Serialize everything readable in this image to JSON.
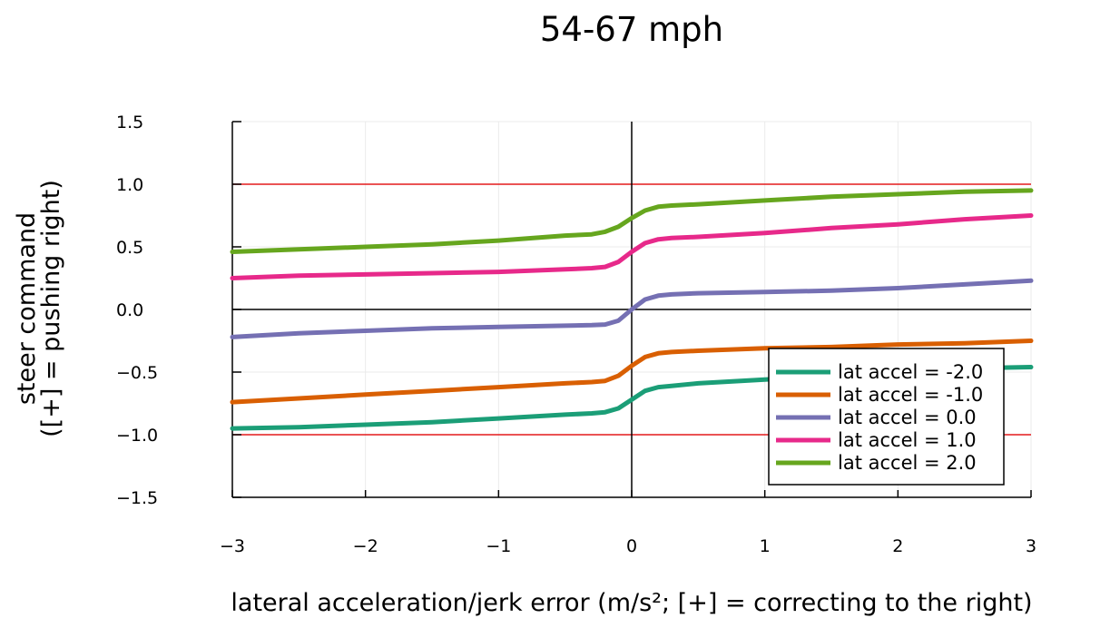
{
  "chart_data": {
    "type": "line",
    "title": "54-67 mph",
    "xlabel": "lateral acceleration/jerk error (m/s²; [+] = correcting to the right)",
    "ylabel": [
      "steer command",
      "([+] = pushing right)"
    ],
    "xlim": [
      -3,
      3
    ],
    "ylim": [
      -1.5,
      1.5
    ],
    "xticks": [
      -3,
      -2,
      -1,
      0,
      1,
      2,
      3
    ],
    "xtick_labels": [
      "−3",
      "−2",
      "−1",
      "0",
      "1",
      "2",
      "3"
    ],
    "yticks": [
      -1.5,
      -1.0,
      -0.5,
      0.0,
      0.5,
      1.0,
      1.5
    ],
    "ytick_labels": [
      "−1.5",
      "−1.0",
      "−0.5",
      "0.0",
      "0.5",
      "1.0",
      "1.5"
    ],
    "grid": true,
    "legend_position": "bottom-right",
    "reference_lines": [
      {
        "axis": "y",
        "value": 1.0,
        "color": "#e41a1c"
      },
      {
        "axis": "y",
        "value": -1.0,
        "color": "#e41a1c"
      },
      {
        "axis": "y",
        "value": 0.0,
        "color": "#000000"
      },
      {
        "axis": "x",
        "value": 0.0,
        "color": "#000000"
      }
    ],
    "x": [
      -3,
      -2.5,
      -2,
      -1.5,
      -1,
      -0.5,
      -0.3,
      -0.2,
      -0.1,
      0,
      0.1,
      0.2,
      0.3,
      0.5,
      1,
      1.5,
      2,
      2.5,
      3
    ],
    "series": [
      {
        "name": "lat accel = -2.0",
        "color": "#1b9e77",
        "values": [
          -0.95,
          -0.94,
          -0.92,
          -0.9,
          -0.87,
          -0.84,
          -0.83,
          -0.82,
          -0.79,
          -0.72,
          -0.65,
          -0.62,
          -0.61,
          -0.59,
          -0.56,
          -0.53,
          -0.5,
          -0.47,
          -0.46
        ]
      },
      {
        "name": "lat accel = -1.0",
        "color": "#d95f02",
        "values": [
          -0.74,
          -0.71,
          -0.68,
          -0.65,
          -0.62,
          -0.59,
          -0.58,
          -0.57,
          -0.53,
          -0.45,
          -0.38,
          -0.35,
          -0.34,
          -0.33,
          -0.31,
          -0.3,
          -0.28,
          -0.27,
          -0.25
        ]
      },
      {
        "name": "lat accel = 0.0",
        "color": "#7570b3",
        "values": [
          -0.22,
          -0.19,
          -0.17,
          -0.15,
          -0.14,
          -0.13,
          -0.125,
          -0.12,
          -0.09,
          0.0,
          0.08,
          0.11,
          0.12,
          0.13,
          0.14,
          0.15,
          0.17,
          0.2,
          0.23
        ]
      },
      {
        "name": "lat accel = 1.0",
        "color": "#e7298a",
        "values": [
          0.25,
          0.27,
          0.28,
          0.29,
          0.3,
          0.32,
          0.33,
          0.34,
          0.38,
          0.46,
          0.53,
          0.56,
          0.57,
          0.58,
          0.61,
          0.65,
          0.68,
          0.72,
          0.75
        ]
      },
      {
        "name": "lat accel = 2.0",
        "color": "#66a61e",
        "values": [
          0.46,
          0.48,
          0.5,
          0.52,
          0.55,
          0.59,
          0.6,
          0.62,
          0.66,
          0.73,
          0.79,
          0.82,
          0.83,
          0.84,
          0.87,
          0.9,
          0.92,
          0.94,
          0.95
        ]
      }
    ]
  }
}
